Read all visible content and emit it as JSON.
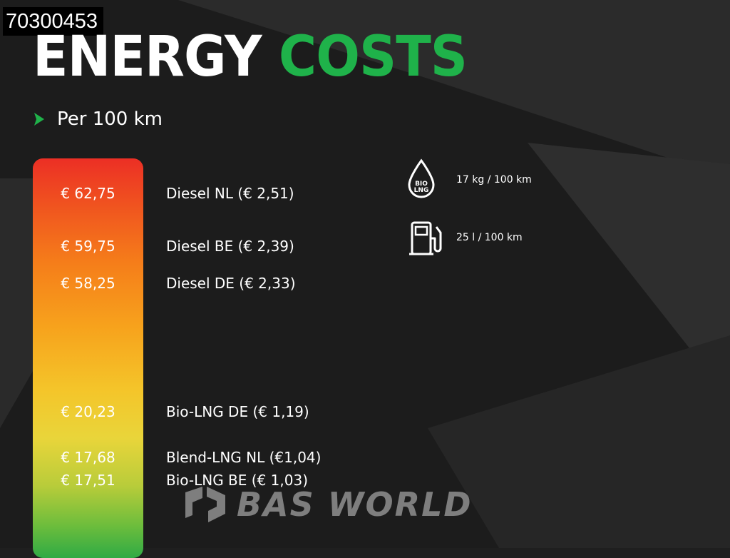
{
  "badge": {
    "id": "70300453"
  },
  "header": {
    "title_part1": "ENERGY",
    "title_part2": "COSTS",
    "subtitle": "Per 100 km",
    "accent_color": "#1fb24a"
  },
  "costs": [
    {
      "price": "€ 62,75",
      "fuel": "Diesel NL (€ 2,51)"
    },
    {
      "price": "€ 59,75",
      "fuel": "Diesel BE (€ 2,39)"
    },
    {
      "price": "€ 58,25",
      "fuel": "Diesel DE (€ 2,33)"
    },
    {
      "price": "€ 20,23",
      "fuel": "Bio-LNG DE (€ 1,19)"
    },
    {
      "price": "€ 17,68",
      "fuel": "Blend-LNG NL (€1,04)"
    },
    {
      "price": "€ 17,51",
      "fuel": "Bio-LNG BE (€ 1,03)"
    }
  ],
  "consumption": {
    "bio_lng": {
      "icon": "bio-lng-drop-icon",
      "icon_text_1": "BIO",
      "icon_text_2": "LNG",
      "label": "17 kg / 100 km"
    },
    "diesel": {
      "icon": "fuel-pump-icon",
      "label": "25 l / 100 km"
    }
  },
  "watermark": {
    "text": "BAS WORLD",
    "icon": "bas-world-logo-icon"
  }
}
